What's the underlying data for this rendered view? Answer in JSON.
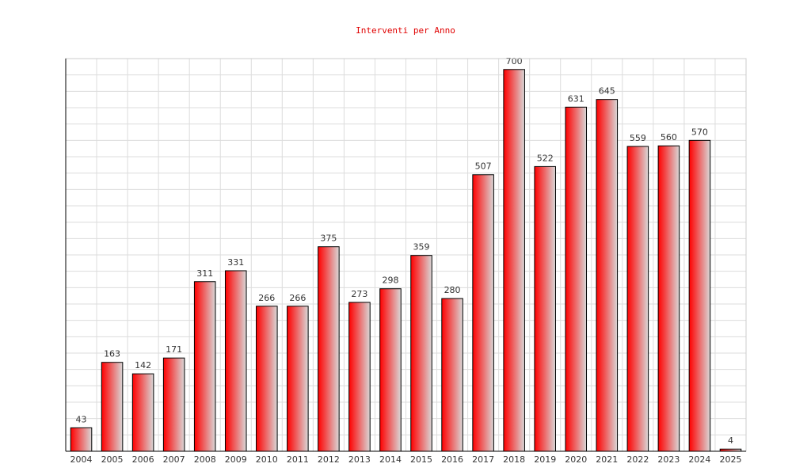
{
  "chart_data": {
    "type": "bar",
    "title": "Interventi per Anno",
    "categories": [
      "2004",
      "2005",
      "2006",
      "2007",
      "2008",
      "2009",
      "2010",
      "2011",
      "2012",
      "2013",
      "2014",
      "2015",
      "2016",
      "2017",
      "2018",
      "2019",
      "2020",
      "2021",
      "2022",
      "2023",
      "2024",
      "2025"
    ],
    "values": [
      43,
      163,
      142,
      171,
      311,
      331,
      266,
      266,
      375,
      273,
      298,
      359,
      280,
      507,
      700,
      522,
      631,
      645,
      559,
      560,
      570,
      4
    ],
    "color": "#ff0000",
    "ylim": [
      0,
      720
    ],
    "yticks": [
      0,
      30,
      60,
      90,
      120,
      150,
      180,
      210,
      240,
      270,
      300,
      330,
      360,
      390,
      420,
      450,
      480,
      510,
      540,
      570,
      600,
      630,
      660,
      690,
      720
    ],
    "grid": true
  }
}
